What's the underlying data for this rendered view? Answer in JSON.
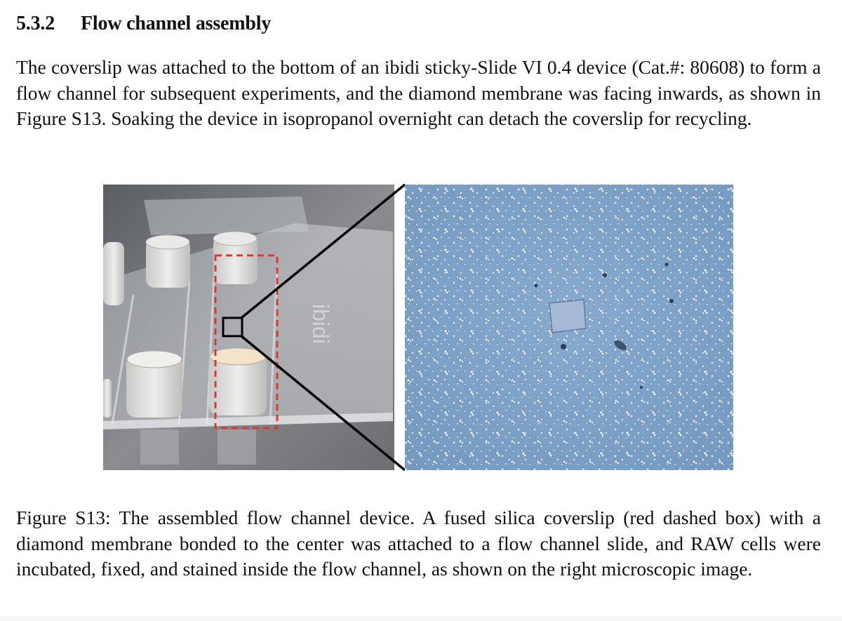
{
  "section": {
    "number": "5.3.2",
    "title": "Flow channel assembly"
  },
  "paragraph": "The coverslip was attached to the bottom of an ibidi sticky-Slide VI 0.4 device (Cat.#: 80608) to form a flow channel for subsequent experiments, and the diamond membrane was facing inwards, as shown in Figure S13. Soaking the device in isopropanol overnight can detach the coverslip for recycling.",
  "figure": {
    "device_label": "ibidi",
    "caption": "Figure S13: The assembled flow channel device. A fused silica coverslip (red dashed box) with a diamond membrane bonded to the center was attached to a flow channel slide, and RAW cells were incubated, fixed, and stained inside the flow channel, as shown on the right microscopic image.",
    "colors": {
      "dashed_box": "#d93a2b",
      "zoom_lines": "#000000",
      "microscope_bg": "#7ea3c8"
    }
  }
}
